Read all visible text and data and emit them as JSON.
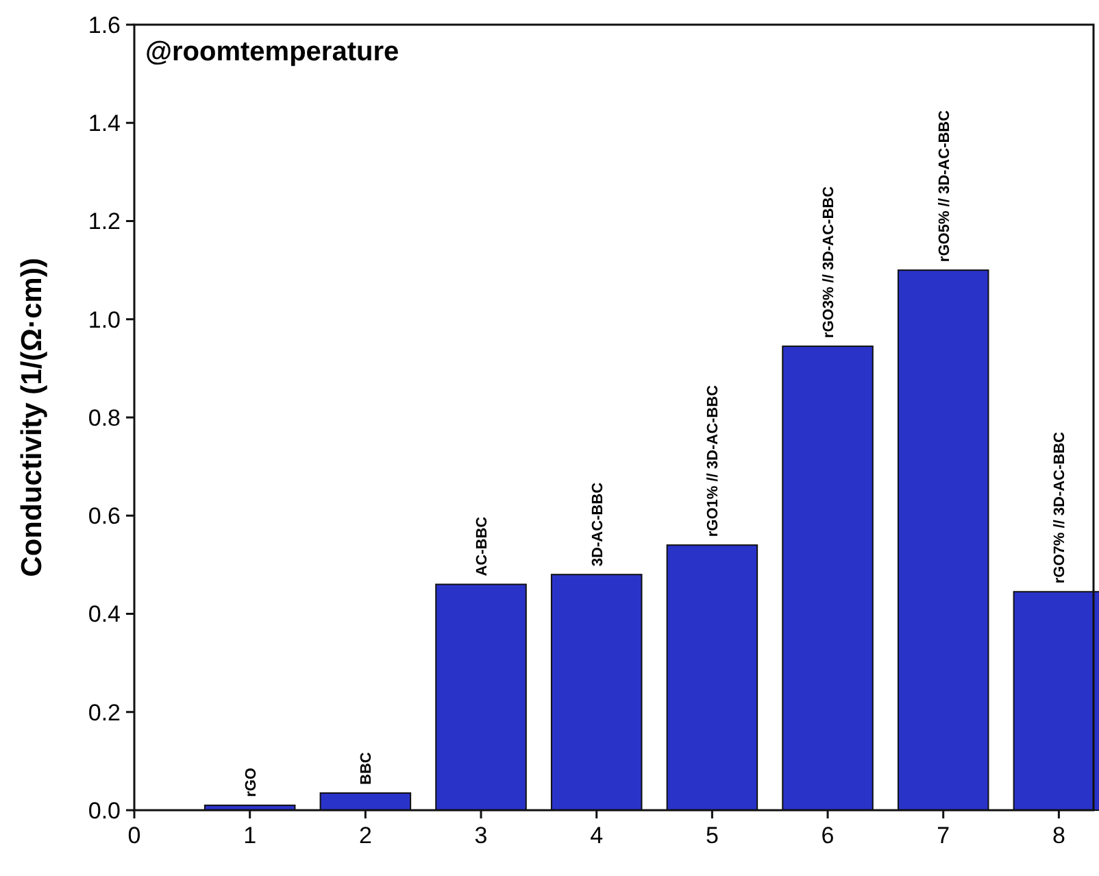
{
  "chart_data": {
    "type": "bar",
    "ylabel": "Conductivity (1/(Ω·cm))",
    "x": [
      1,
      2,
      3,
      4,
      5,
      6,
      7,
      8
    ],
    "values": [
      0.01,
      0.035,
      0.46,
      0.48,
      0.54,
      0.945,
      1.1,
      0.445
    ],
    "color": "#2a33c8",
    "xlim": [
      0,
      8.3
    ],
    "xticks": [
      0,
      1,
      2,
      3,
      4,
      5,
      6,
      7,
      8
    ],
    "ylim": [
      0,
      1.6
    ],
    "yticks": [
      {
        "value": 0,
        "label": "0.0"
      },
      0.2,
      0.4,
      0.6,
      0.8,
      {
        "value": 1,
        "label": "1.0"
      },
      1.2,
      1.4,
      1.6
    ],
    "grid": false,
    "annotations": [
      "@roomtemperature",
      {
        "text": "rGO",
        "x": 1,
        "y": 0.01
      },
      {
        "text": "BBC",
        "x": 2,
        "y": 0.035
      },
      {
        "text": "AC-BBC",
        "x": 3,
        "y": 0.46
      },
      {
        "text": "3D-AC-BBC",
        "x": 4,
        "y": 0.48
      },
      {
        "text": "rGO1% // 3D-AC-BBC",
        "x": 5,
        "y": 0.54
      },
      {
        "text": "rGO3% // 3D-AC-BBC",
        "x": 6,
        "y": 0.945
      },
      {
        "text": "rGO5% // 3D-AC-BBC",
        "x": 7,
        "y": 1.1
      },
      {
        "text": "rGO7% // 3D-AC-BBC",
        "x": 8,
        "y": 0.445
      }
    ]
  }
}
